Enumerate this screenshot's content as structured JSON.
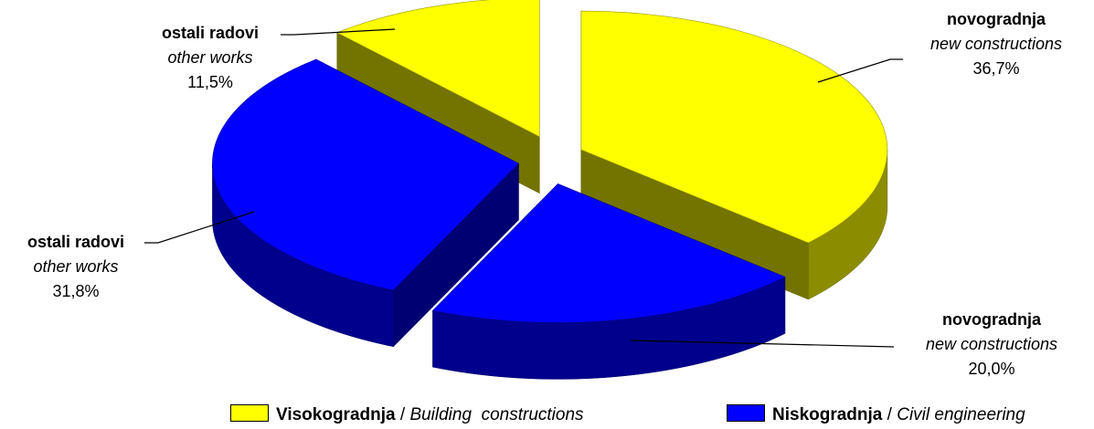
{
  "chart_data": {
    "type": "pie",
    "slices": [
      {
        "group": "visokogradnja",
        "label": "novogradnja",
        "label_en": "new constructions",
        "percent_text": "36,7%",
        "value": 36.7,
        "color": "#FFFF00"
      },
      {
        "group": "niskogradnja",
        "label": "novogradnja",
        "label_en": "new constructions",
        "percent_text": "20,0%",
        "value": 20.0,
        "color": "#0000FF"
      },
      {
        "group": "niskogradnja",
        "label": "ostali radovi",
        "label_en": "other works",
        "percent_text": "31,8%",
        "value": 31.8,
        "color": "#0000FF"
      },
      {
        "group": "visokogradnja",
        "label": "ostali radovi",
        "label_en": "other works",
        "percent_text": "11,5%",
        "value": 11.5,
        "color": "#FFFF00"
      }
    ],
    "legend": [
      {
        "key": "visokogradnja",
        "name": "Visokogradnja",
        "sep": "/",
        "name_en": "Building  constructions",
        "color": "#FFFF00"
      },
      {
        "key": "niskogradnja",
        "name": "Niskogradnja",
        "sep": "/",
        "name_en": "Civil engineering",
        "color": "#0000FF"
      }
    ],
    "legend_position": "bottom",
    "style": "3d-exploded"
  }
}
